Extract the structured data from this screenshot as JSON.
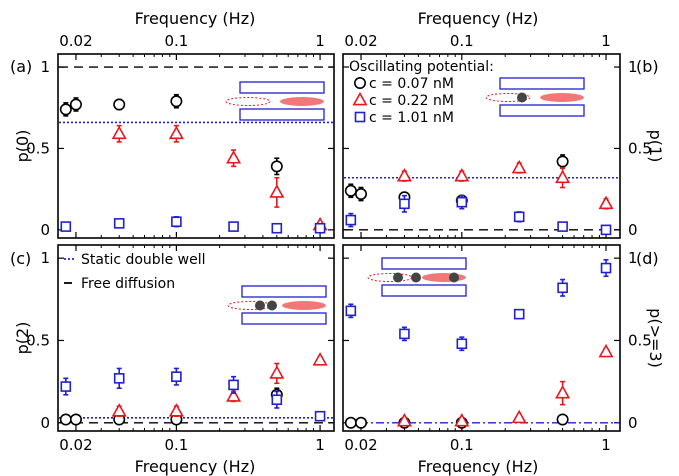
{
  "colors": {
    "black": "#000000",
    "red": "#e8161d",
    "blue": "#2020d0",
    "dotted": "#2020d0",
    "schematic_fill": "#f07878"
  },
  "figure": {
    "top_axis_label": "Frequency (Hz)",
    "bottom_axis_label": "Frequency (Hz)",
    "x_tick_labels": [
      "0.02",
      "0.1",
      "1"
    ]
  },
  "chart_data": [
    {
      "type": "scatter",
      "panel": "(a)",
      "ylabel": "p(0)",
      "xscale": "log",
      "xlim": [
        0.015,
        1.25
      ],
      "ylim": [
        -0.05,
        1.08
      ],
      "y_tick_labels": [
        "0",
        "0.5",
        "1"
      ],
      "reference_lines": [
        {
          "name": "dashed",
          "style": "dashed",
          "y": 1.0
        },
        {
          "name": "dotted",
          "style": "dotted",
          "y": 0.66
        }
      ],
      "series": [
        {
          "name": "c = 0.07 nM",
          "marker": "circle",
          "color": "#000000",
          "x": [
            0.017,
            0.02,
            0.04,
            0.1,
            0.5
          ],
          "y": [
            0.74,
            0.77,
            0.77,
            0.79,
            0.39
          ],
          "err": [
            0.04,
            0.04,
            0.03,
            0.04,
            0.05
          ]
        },
        {
          "name": "c = 0.22 nM",
          "marker": "triangle",
          "color": "#e8161d",
          "x": [
            0.04,
            0.1,
            0.25,
            0.5,
            1.0
          ],
          "y": [
            0.59,
            0.59,
            0.44,
            0.23,
            0.03
          ],
          "err": [
            0.05,
            0.05,
            0.05,
            0.09,
            0.02
          ]
        },
        {
          "name": "c = 1.01 nM",
          "marker": "square",
          "color": "#2020d0",
          "x": [
            0.017,
            0.04,
            0.1,
            0.25,
            0.5,
            1.0
          ],
          "y": [
            0.02,
            0.04,
            0.05,
            0.02,
            0.01,
            0.01
          ],
          "err": [
            0.01,
            0.01,
            0.03,
            0.01,
            0.01,
            0.01
          ]
        }
      ]
    },
    {
      "type": "scatter",
      "panel": "(b)",
      "ylabel": "p(1)",
      "xscale": "log",
      "xlim": [
        0.015,
        1.25
      ],
      "ylim": [
        -0.05,
        1.08
      ],
      "y_tick_labels": [
        "0",
        "0.5",
        "1"
      ],
      "reference_lines": [
        {
          "name": "dashed",
          "style": "dashed",
          "y": 0.0
        },
        {
          "name": "dotted",
          "style": "dotted",
          "y": 0.32
        }
      ],
      "series": [
        {
          "name": "c = 0.07 nM",
          "marker": "circle",
          "color": "#000000",
          "x": [
            0.017,
            0.02,
            0.04,
            0.1,
            0.5
          ],
          "y": [
            0.24,
            0.22,
            0.2,
            0.18,
            0.42
          ],
          "err": [
            0.04,
            0.04,
            0.03,
            0.03,
            0.04
          ]
        },
        {
          "name": "c = 0.22 nM",
          "marker": "triangle",
          "color": "#e8161d",
          "x": [
            0.04,
            0.1,
            0.25,
            0.5,
            1.0
          ],
          "y": [
            0.33,
            0.33,
            0.38,
            0.32,
            0.16
          ],
          "err": [
            0.03,
            0.03,
            0.03,
            0.06,
            0.03
          ]
        },
        {
          "name": "c = 1.01 nM",
          "marker": "square",
          "color": "#2020d0",
          "x": [
            0.017,
            0.04,
            0.1,
            0.25,
            0.5,
            1.0
          ],
          "y": [
            0.06,
            0.16,
            0.17,
            0.08,
            0.02,
            0.0
          ],
          "err": [
            0.04,
            0.05,
            0.04,
            0.03,
            0.02,
            0.01
          ]
        }
      ],
      "legend": {
        "title": "Oscillating potential:",
        "entries": [
          {
            "marker": "circle",
            "color": "#000000",
            "label": "c = 0.07 nM"
          },
          {
            "marker": "triangle",
            "color": "#e8161d",
            "label": "c = 0.22 nM"
          },
          {
            "marker": "square",
            "color": "#2020d0",
            "label": "c = 1.01 nM"
          }
        ]
      }
    },
    {
      "type": "scatter",
      "panel": "(c)",
      "ylabel": "p(2)",
      "xscale": "log",
      "xlim": [
        0.015,
        1.25
      ],
      "ylim": [
        -0.05,
        1.08
      ],
      "y_tick_labels": [
        "0",
        "0.5",
        "1"
      ],
      "reference_lines": [
        {
          "name": "dashed",
          "style": "dashed",
          "y": 0.0
        },
        {
          "name": "dotted",
          "style": "dotted",
          "y": 0.03
        }
      ],
      "series": [
        {
          "name": "c = 0.07 nM",
          "marker": "circle",
          "color": "#000000",
          "x": [
            0.017,
            0.02,
            0.04,
            0.1,
            0.5
          ],
          "y": [
            0.02,
            0.02,
            0.02,
            0.02,
            0.17
          ],
          "err": [
            0.01,
            0.01,
            0.01,
            0.01,
            0.04
          ]
        },
        {
          "name": "c = 0.22 nM",
          "marker": "triangle",
          "color": "#e8161d",
          "x": [
            0.04,
            0.1,
            0.25,
            0.5,
            1.0
          ],
          "y": [
            0.07,
            0.07,
            0.16,
            0.3,
            0.38
          ],
          "err": [
            0.03,
            0.03,
            0.03,
            0.06,
            0.02
          ]
        },
        {
          "name": "c = 1.01 nM",
          "marker": "square",
          "color": "#2020d0",
          "x": [
            0.017,
            0.04,
            0.1,
            0.25,
            0.5,
            1.0
          ],
          "y": [
            0.22,
            0.27,
            0.28,
            0.23,
            0.14,
            0.04
          ],
          "err": [
            0.05,
            0.06,
            0.05,
            0.05,
            0.05,
            0.01
          ]
        }
      ],
      "legend": {
        "entries": [
          {
            "style": "dotted",
            "label": "Static double well"
          },
          {
            "style": "dashed",
            "label": "Free diffusion"
          }
        ]
      }
    },
    {
      "type": "scatter",
      "panel": "(d)",
      "ylabel": "p(>=3)",
      "xscale": "log",
      "xlim": [
        0.015,
        1.25
      ],
      "ylim": [
        -0.05,
        1.08
      ],
      "y_tick_labels": [
        "0",
        "0.5",
        "1"
      ],
      "reference_lines": [
        {
          "name": "dashdot",
          "style": "dashdot",
          "y": 0.0
        }
      ],
      "series": [
        {
          "name": "c = 0.07 nM",
          "marker": "circle",
          "color": "#000000",
          "x": [
            0.017,
            0.02,
            0.04,
            0.1,
            0.5
          ],
          "y": [
            0.0,
            0.0,
            0.0,
            0.0,
            0.02
          ],
          "err": [
            0.005,
            0.005,
            0.005,
            0.005,
            0.01
          ]
        },
        {
          "name": "c = 0.22 nM",
          "marker": "triangle",
          "color": "#e8161d",
          "x": [
            0.04,
            0.1,
            0.25,
            0.5,
            1.0
          ],
          "y": [
            0.01,
            0.01,
            0.03,
            0.18,
            0.43
          ],
          "err": [
            0.01,
            0.01,
            0.01,
            0.07,
            0.02
          ]
        },
        {
          "name": "c = 1.01 nM",
          "marker": "square",
          "color": "#2020d0",
          "x": [
            0.017,
            0.04,
            0.1,
            0.25,
            0.5,
            1.0
          ],
          "y": [
            0.68,
            0.54,
            0.48,
            0.66,
            0.82,
            0.94
          ],
          "err": [
            0.04,
            0.04,
            0.04,
            0.02,
            0.05,
            0.05
          ]
        }
      ]
    }
  ]
}
